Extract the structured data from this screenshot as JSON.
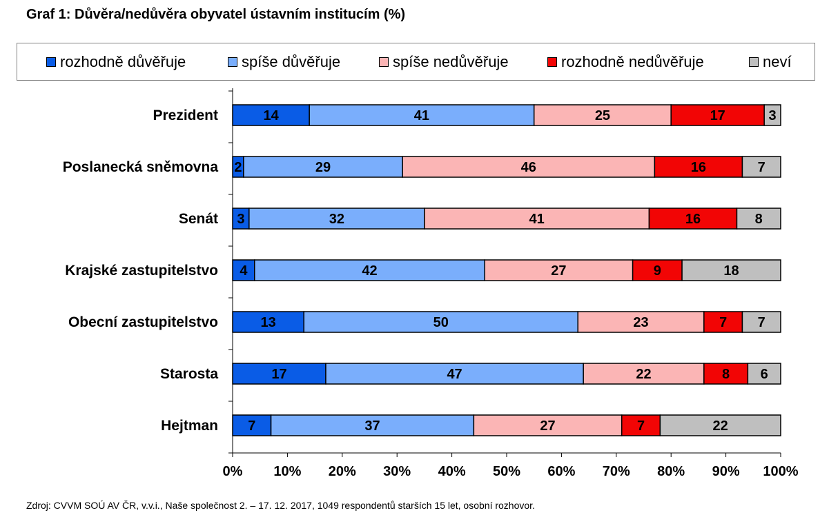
{
  "title": "Graf 1: Důvěra/nedůvěra obyvatel ústavním institucím (%)",
  "source": "Zdroj: CVVM SOÚ AV ČR, v.v.i., Naše společnost 2. – 17. 12. 2017, 1049 respondentů starších 15 let, osobní rozhovor.",
  "legend_items": [
    {
      "label": "rozhodně důvěřuje",
      "color": "#0a5ce6"
    },
    {
      "label": "spíše důvěřuje",
      "color": "#7aaefc"
    },
    {
      "label": "spíše nedůvěřuje",
      "color": "#fbb5b5"
    },
    {
      "label": "rozhodně nedůvěřuje",
      "color": "#f20505"
    },
    {
      "label": "neví",
      "color": "#bfbfbf"
    }
  ],
  "chart_data": {
    "type": "bar",
    "orientation": "horizontal",
    "stacked": true,
    "categories": [
      "Prezident",
      "Poslanecká sněmovna",
      "Senát",
      "Krajské zastupitelstvo",
      "Obecní zastupitelstvo",
      "Starosta",
      "Hejtman"
    ],
    "series": [
      {
        "name": "rozhodně důvěřuje",
        "color": "#0a5ce6",
        "values": [
          14,
          2,
          3,
          4,
          13,
          17,
          7
        ]
      },
      {
        "name": "spíše důvěřuje",
        "color": "#7aaefc",
        "values": [
          41,
          29,
          32,
          42,
          50,
          47,
          37
        ]
      },
      {
        "name": "spíše nedůvěřuje",
        "color": "#fbb5b5",
        "values": [
          25,
          46,
          41,
          27,
          23,
          22,
          27
        ]
      },
      {
        "name": "rozhodně nedůvěřuje",
        "color": "#f20505",
        "values": [
          17,
          16,
          16,
          9,
          7,
          8,
          7
        ]
      },
      {
        "name": "neví",
        "color": "#bfbfbf",
        "values": [
          3,
          7,
          8,
          18,
          7,
          6,
          22
        ]
      }
    ],
    "x_ticks": [
      "0%",
      "10%",
      "20%",
      "30%",
      "40%",
      "50%",
      "60%",
      "70%",
      "80%",
      "90%",
      "100%"
    ],
    "xlim": [
      0,
      100
    ],
    "grid": false,
    "legend_position": "top"
  }
}
